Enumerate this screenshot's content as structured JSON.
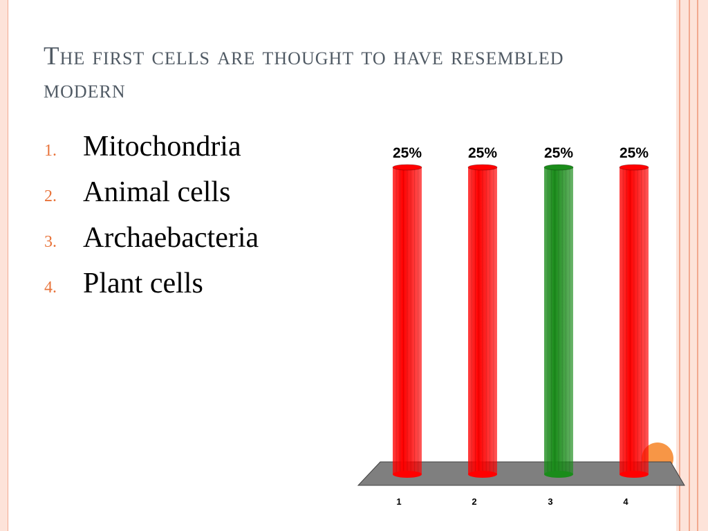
{
  "slide": {
    "title": "The first cells are thought to have resembled modern",
    "answers": [
      {
        "number": "1.",
        "text": "Mitochondria"
      },
      {
        "number": "2.",
        "text": "Animal cells"
      },
      {
        "number": "3.",
        "text": "Archaebacteria"
      },
      {
        "number": "4.",
        "text": "Plant cells"
      }
    ]
  },
  "colors": {
    "accent": "#e8733a",
    "correct_bar": "#1a8c1a",
    "wrong_bar": "#ff0000",
    "floor": "#7f7f7f"
  },
  "chart_data": {
    "type": "bar",
    "categories": [
      "1",
      "2",
      "3",
      "4"
    ],
    "values": [
      25,
      25,
      25,
      25
    ],
    "data_labels": [
      "25%",
      "25%",
      "25%",
      "25%"
    ],
    "highlight_index": 2,
    "ylim": [
      0,
      25
    ],
    "title": "",
    "xlabel": "",
    "ylabel": "",
    "grid": false,
    "legend": "none"
  }
}
